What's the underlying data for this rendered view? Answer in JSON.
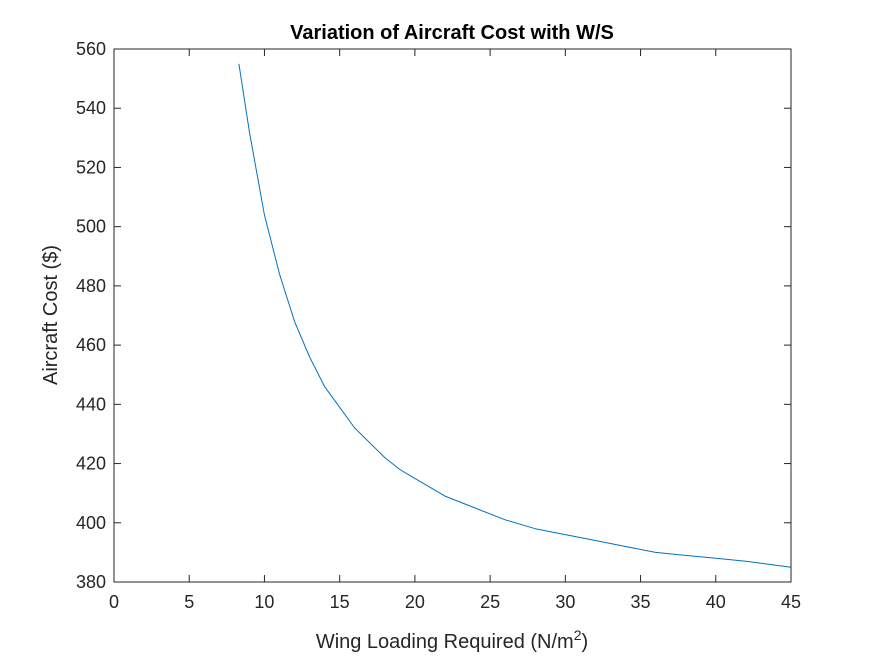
{
  "chart_data": {
    "type": "line",
    "title": "Variation of Aircraft Cost with W/S",
    "xlabel": "Wing Loading Required (N/m",
    "xlabel_superscript": "2",
    "xlabel_suffix": ")",
    "ylabel": "Aircraft Cost ($)",
    "xlim": [
      0,
      45
    ],
    "ylim": [
      380,
      560
    ],
    "xticks": [
      0,
      5,
      10,
      15,
      20,
      25,
      30,
      35,
      40,
      45
    ],
    "yticks": [
      380,
      400,
      420,
      440,
      460,
      480,
      500,
      520,
      540,
      560
    ],
    "grid": false,
    "box": true,
    "series": [
      {
        "color": "#0072BD",
        "x": [
          8.3,
          9,
          10,
          11,
          12,
          13,
          14,
          15,
          16,
          17,
          18,
          19,
          20,
          22,
          24,
          26,
          28,
          30,
          32,
          34,
          36,
          38,
          40,
          42,
          45
        ],
        "y": [
          555,
          532,
          504,
          484,
          468,
          456,
          446,
          439,
          432,
          427,
          422,
          418,
          415,
          409,
          405,
          401,
          398,
          396,
          394,
          392,
          390,
          389,
          388,
          387,
          385
        ]
      }
    ]
  }
}
